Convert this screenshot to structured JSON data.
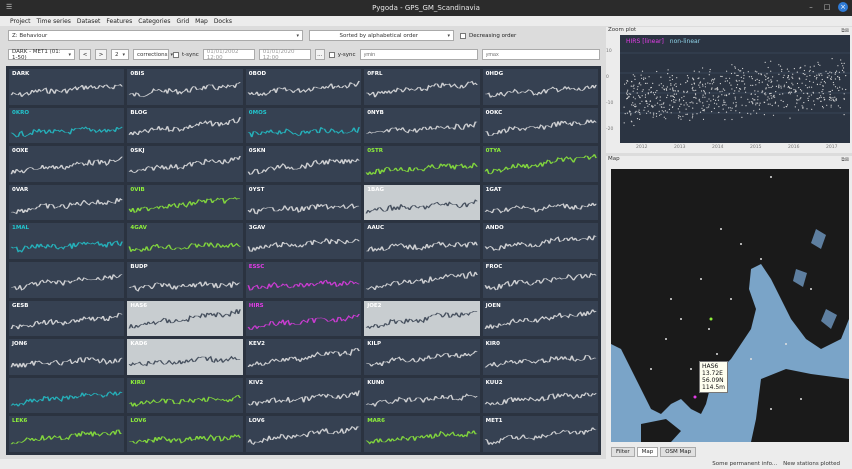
{
  "window": {
    "title": "Pygoda - GPS_GM_Scandinavia"
  },
  "menu": [
    "Project",
    "Time series",
    "Dataset",
    "Features",
    "Categories",
    "Grid",
    "Map",
    "Docks"
  ],
  "filters": {
    "feature": "Z: Behaviour",
    "sort": "Sorted by alphabetical order",
    "decreasing_label": "Decreasing order"
  },
  "controls": {
    "range": "DARK - MET1 (01: 1-50)",
    "prev": "<",
    "next": ">",
    "ncols": "2",
    "mode": "corrections",
    "tsync_label": "t-sync",
    "tmin": "01/01/2002 12:00",
    "tmax": "01/01/2020 12:00",
    "dots": "...",
    "ysync_label": "y-sync",
    "ymin_placeholder": "ymin",
    "ymax_placeholder": "ymax"
  },
  "stations": [
    "DARK",
    "0BIS",
    "0BOD",
    "0FRL",
    "0HDG",
    "0KRO",
    "BLOG",
    "0MOS",
    "0NYB",
    "0OKC",
    "0OXE",
    "0SKJ",
    "0SKN",
    "0STR",
    "0TYA",
    "0VAR",
    "0VIB",
    "0YST",
    "1BAG",
    "1GAT",
    "1MAL",
    "4GAV",
    "3GAV",
    "AAUC",
    "ANDO",
    "",
    "BUDP",
    "ESSC",
    "",
    "FROC",
    "GESB",
    "HAS6",
    "HIRS",
    "JOE2",
    "JOEN",
    "JON6",
    "KAD6",
    "KEV2",
    "KILP",
    "KIR0",
    "",
    "KIRU",
    "KIV2",
    "KUN0",
    "KUU2",
    "LEK6",
    "LOV6",
    "LOV6",
    "MAR6",
    "MET1"
  ],
  "colors": {
    "default": "#e8e8e8",
    "cyan": "#22c4cc",
    "green": "#8ef03a",
    "magenta": "#e23ce6",
    "selected_bg": "#c8cdd0",
    "dark": "#2f3a4a"
  },
  "zoom": {
    "title": "Zoom plot",
    "legend_a": "HIRS",
    "legend_a_sub": "[linear]",
    "legend_b": "non-linear",
    "years": [
      "2012",
      "2013",
      "2014",
      "2015",
      "2016",
      "2017"
    ],
    "yticks": [
      "10",
      "0",
      "-10",
      "-20"
    ]
  },
  "map": {
    "title": "Map",
    "tooltip": [
      "HAS6",
      "13.72E",
      "56.09N",
      "114.5m"
    ]
  },
  "tabs": [
    "Filter",
    "Map",
    "OSM Map"
  ],
  "status": [
    "Some permanent info...",
    "New stations plotted"
  ]
}
